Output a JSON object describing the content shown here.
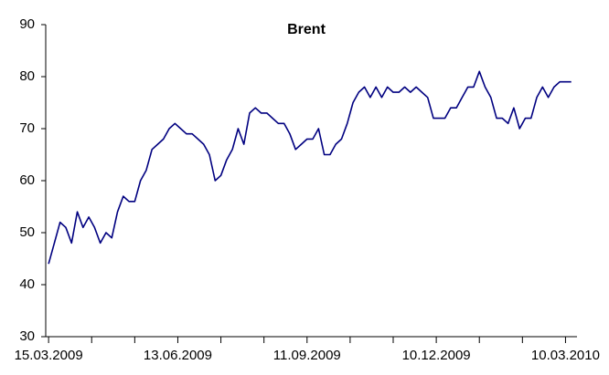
{
  "chart_data": {
    "type": "line",
    "title": "Brent",
    "color": "#000080",
    "x": [
      "15.03.2009",
      "19.03.2009",
      "23.03.2009",
      "27.03.2009",
      "31.03.2009",
      "04.04.2009",
      "08.04.2009",
      "12.04.2009",
      "16.04.2009",
      "20.04.2009",
      "24.04.2009",
      "28.04.2009",
      "02.05.2009",
      "06.05.2009",
      "10.05.2009",
      "14.05.2009",
      "18.05.2009",
      "22.05.2009",
      "26.05.2009",
      "30.05.2009",
      "03.06.2009",
      "07.06.2009",
      "11.06.2009",
      "15.06.2009",
      "19.06.2009",
      "23.06.2009",
      "27.06.2009",
      "01.07.2009",
      "05.07.2009",
      "09.07.2009",
      "13.07.2009",
      "17.07.2009",
      "21.07.2009",
      "25.07.2009",
      "29.07.2009",
      "02.08.2009",
      "06.08.2009",
      "10.08.2009",
      "14.08.2009",
      "18.08.2009",
      "22.08.2009",
      "26.08.2009",
      "30.08.2009",
      "03.09.2009",
      "07.09.2009",
      "11.09.2009",
      "15.09.2009",
      "19.09.2009",
      "23.09.2009",
      "27.09.2009",
      "01.10.2009",
      "05.10.2009",
      "09.10.2009",
      "13.10.2009",
      "17.10.2009",
      "21.10.2009",
      "25.10.2009",
      "29.10.2009",
      "02.11.2009",
      "06.11.2009",
      "10.11.2009",
      "14.11.2009",
      "18.11.2009",
      "22.11.2009",
      "26.11.2009",
      "30.11.2009",
      "04.12.2009",
      "08.12.2009",
      "12.12.2009",
      "16.12.2009",
      "20.12.2009",
      "24.12.2009",
      "28.12.2009",
      "01.01.2010",
      "05.01.2010",
      "09.01.2010",
      "13.01.2010",
      "17.01.2010",
      "21.01.2010",
      "25.01.2010",
      "29.01.2010",
      "02.02.2010",
      "06.02.2010",
      "10.02.2010",
      "14.02.2010",
      "18.02.2010",
      "22.02.2010",
      "26.02.2010",
      "02.03.2010",
      "06.03.2010",
      "10.03.2010",
      "14.03.2010"
    ],
    "values": [
      44,
      48,
      52,
      51,
      48,
      54,
      51,
      53,
      51,
      48,
      50,
      49,
      54,
      57,
      56,
      56,
      60,
      62,
      66,
      67,
      68,
      70,
      71,
      70,
      69,
      69,
      68,
      67,
      65,
      60,
      61,
      64,
      66,
      70,
      67,
      73,
      74,
      73,
      73,
      72,
      71,
      71,
      69,
      66,
      67,
      68,
      68,
      70,
      65,
      65,
      67,
      68,
      71,
      75,
      77,
      78,
      76,
      78,
      76,
      78,
      77,
      77,
      78,
      77,
      78,
      77,
      76,
      72,
      72,
      72,
      74,
      74,
      76,
      78,
      78,
      81,
      78,
      76,
      72,
      72,
      71,
      74,
      70,
      72,
      72,
      76,
      78,
      76,
      78,
      79,
      79,
      79
    ],
    "xlim": [
      "13.03.2009",
      "18.03.2010"
    ],
    "xticks": [
      "15.03.2009",
      "13.06.2009",
      "11.09.2009",
      "10.12.2009",
      "10.03.2010"
    ],
    "xminorticks": [
      "15.03.2009",
      "14.04.2009",
      "14.05.2009",
      "13.06.2009",
      "13.07.2009",
      "12.08.2009",
      "11.09.2009",
      "11.10.2009",
      "10.11.2009",
      "10.12.2009",
      "09.01.2010",
      "08.02.2010",
      "10.03.2010"
    ],
    "ylim": [
      30,
      90
    ],
    "yticks": [
      30,
      40,
      50,
      60,
      70,
      80,
      90
    ],
    "grid": false
  }
}
